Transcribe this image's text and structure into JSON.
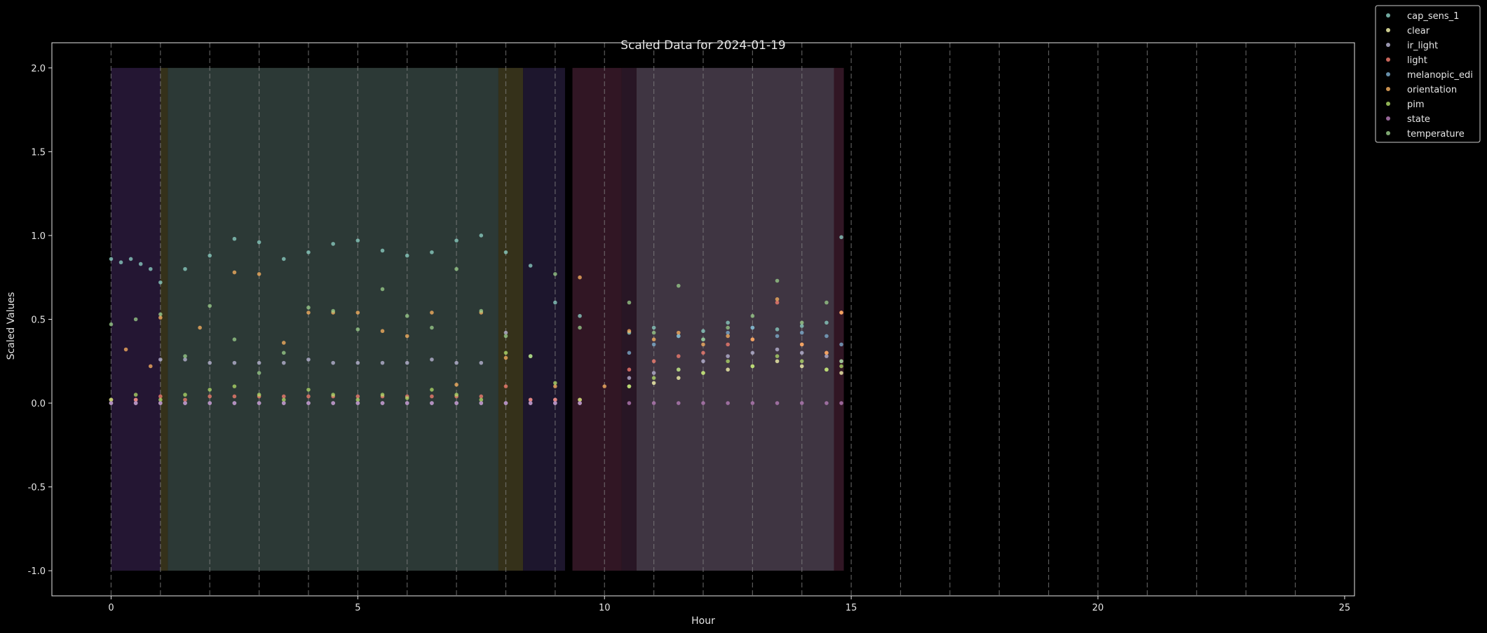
{
  "chart_data": {
    "type": "scatter",
    "title": "Scaled Data for 2024-01-19",
    "xlabel": "Hour",
    "ylabel": "Scaled Values",
    "xlim": [
      -1.2,
      25.2
    ],
    "ylim": [
      -1.15,
      2.15
    ],
    "xticks": [
      0,
      5,
      10,
      15,
      20,
      25
    ],
    "yticks": [
      -1.0,
      -0.5,
      0.0,
      0.5,
      1.0,
      1.5,
      2.0
    ],
    "grid": false,
    "hour_lines": [
      0,
      1,
      2,
      3,
      4,
      5,
      6,
      7,
      8,
      9,
      10,
      11,
      12,
      13,
      14,
      15,
      16,
      17,
      18,
      19,
      20,
      21,
      22,
      23,
      24
    ],
    "legend_position": "outside-top-right",
    "shaded_regions": [
      {
        "x0": 0.0,
        "x1": 1.0,
        "y0": -1.0,
        "y1": 2.0,
        "color": "#2a1a3c"
      },
      {
        "x0": 1.0,
        "x1": 1.15,
        "y0": -1.0,
        "y1": 2.0,
        "color": "#3e3a1e"
      },
      {
        "x0": 1.15,
        "x1": 7.85,
        "y0": -1.0,
        "y1": 2.0,
        "color": "#34433f"
      },
      {
        "x0": 7.85,
        "x1": 8.35,
        "y0": -1.0,
        "y1": 2.0,
        "color": "#3e3a1e"
      },
      {
        "x0": 8.35,
        "x1": 9.2,
        "y0": -1.0,
        "y1": 2.0,
        "color": "#221a35"
      },
      {
        "x0": 9.35,
        "x1": 10.35,
        "y0": -1.0,
        "y1": 2.0,
        "color": "#3a1a2a"
      },
      {
        "x0": 10.35,
        "x1": 10.65,
        "y0": -1.0,
        "y1": 2.0,
        "color": "#2f1a2c"
      },
      {
        "x0": 10.65,
        "x1": 14.65,
        "y0": -1.0,
        "y1": 2.0,
        "color": "#4a3e4e"
      },
      {
        "x0": 14.65,
        "x1": 14.85,
        "y0": -1.0,
        "y1": 2.0,
        "color": "#3a1a2a"
      }
    ],
    "series": [
      {
        "name": "cap_sens_1",
        "color": "#8dd3c7",
        "x": [
          0,
          0.2,
          0.4,
          0.6,
          0.8,
          1.0,
          1.5,
          2.0,
          2.5,
          3.0,
          3.5,
          4.0,
          4.5,
          5.0,
          5.5,
          6.0,
          6.5,
          7.0,
          7.5,
          8.0,
          8.5,
          9.0,
          9.5,
          10.5,
          11.0,
          11.5,
          12.0,
          12.5,
          13.0,
          13.5,
          14.0,
          14.5,
          14.8
        ],
        "y": [
          0.86,
          0.84,
          0.86,
          0.83,
          0.8,
          0.72,
          0.8,
          0.88,
          0.98,
          0.96,
          0.86,
          0.9,
          0.95,
          0.97,
          0.91,
          0.88,
          0.9,
          0.97,
          1.0,
          0.9,
          0.82,
          0.6,
          0.52,
          0.42,
          0.45,
          0.4,
          0.43,
          0.48,
          0.45,
          0.44,
          0.46,
          0.48,
          0.99
        ]
      },
      {
        "name": "clear",
        "color": "#ffffb3",
        "x": [
          0,
          0.5,
          1.0,
          1.5,
          2.0,
          2.5,
          3.0,
          3.5,
          4.0,
          4.5,
          5.0,
          5.5,
          6.0,
          6.5,
          7.0,
          7.5,
          8.0,
          8.5,
          9.0,
          9.5,
          10.5,
          11.0,
          11.5,
          12.0,
          12.5,
          13.0,
          13.5,
          14.0,
          14.5,
          14.8
        ],
        "y": [
          0.0,
          0.0,
          0.0,
          0.0,
          0.0,
          0.0,
          0.0,
          0.0,
          0.0,
          0.0,
          0.0,
          0.0,
          0.0,
          0.0,
          0.0,
          0.0,
          0.0,
          0.0,
          0.0,
          0.0,
          0.1,
          0.12,
          0.15,
          0.18,
          0.2,
          0.22,
          0.25,
          0.22,
          0.2,
          0.18
        ]
      },
      {
        "name": "ir_light",
        "color": "#bebada",
        "x": [
          0,
          0.5,
          1.0,
          1.5,
          2.0,
          2.5,
          3.0,
          3.5,
          4.0,
          4.5,
          5.0,
          5.5,
          6.0,
          6.5,
          7.0,
          7.5,
          8.0,
          8.5,
          9.0,
          9.5,
          10.5,
          11.0,
          11.5,
          12.0,
          12.5,
          13.0,
          13.5,
          14.0,
          14.5,
          14.8
        ],
        "y": [
          0.02,
          0.02,
          0.26,
          0.26,
          0.24,
          0.24,
          0.24,
          0.24,
          0.26,
          0.24,
          0.24,
          0.24,
          0.24,
          0.26,
          0.24,
          0.24,
          0.42,
          0.02,
          0.02,
          0.02,
          0.15,
          0.18,
          0.2,
          0.25,
          0.28,
          0.3,
          0.32,
          0.3,
          0.28,
          0.25
        ]
      },
      {
        "name": "light",
        "color": "#fb8072",
        "x": [
          0,
          0.5,
          1.0,
          1.5,
          2.0,
          2.5,
          3.0,
          3.5,
          4.0,
          4.5,
          5.0,
          5.5,
          6.0,
          6.5,
          7.0,
          7.5,
          8.0,
          8.5,
          9.0,
          9.5,
          10.5,
          11.0,
          11.5,
          12.0,
          12.5,
          13.0,
          13.5,
          14.0,
          14.5,
          14.8
        ],
        "y": [
          0.02,
          0.02,
          0.04,
          0.02,
          0.04,
          0.04,
          0.04,
          0.04,
          0.04,
          0.04,
          0.04,
          0.04,
          0.04,
          0.04,
          0.04,
          0.04,
          0.1,
          0.02,
          0.02,
          0.02,
          0.2,
          0.25,
          0.28,
          0.3,
          0.35,
          0.38,
          0.6,
          0.35,
          0.3,
          0.54
        ]
      },
      {
        "name": "melanopic_edi",
        "color": "#80b1d3",
        "x": [
          0,
          0.5,
          1.0,
          1.5,
          2.0,
          2.5,
          3.0,
          3.5,
          4.0,
          4.5,
          5.0,
          5.5,
          6.0,
          6.5,
          7.0,
          7.5,
          8.0,
          8.5,
          9.0,
          9.5,
          10.5,
          11.0,
          11.5,
          12.0,
          12.5,
          13.0,
          13.5,
          14.0,
          14.5,
          14.8
        ],
        "y": [
          0.0,
          0.0,
          0.0,
          0.0,
          0.0,
          0.0,
          0.0,
          0.0,
          0.0,
          0.0,
          0.0,
          0.0,
          0.0,
          0.0,
          0.0,
          0.0,
          0.0,
          0.0,
          0.0,
          0.0,
          0.3,
          0.35,
          0.4,
          0.38,
          0.42,
          0.45,
          0.4,
          0.42,
          0.4,
          0.35
        ]
      },
      {
        "name": "orientation",
        "color": "#fdb462",
        "x": [
          0.3,
          0.8,
          1.0,
          1.8,
          2.5,
          3.0,
          3.5,
          4.0,
          4.5,
          5.0,
          5.5,
          6.0,
          6.5,
          7.0,
          7.5,
          8.0,
          8.5,
          9.0,
          9.5,
          10.0,
          10.5,
          11.0,
          11.5,
          12.0,
          12.5,
          13.0,
          13.5,
          14.0,
          14.5,
          14.8
        ],
        "y": [
          0.32,
          0.22,
          0.51,
          0.45,
          0.78,
          0.77,
          0.36,
          0.54,
          0.54,
          0.54,
          0.43,
          0.4,
          0.54,
          0.11,
          0.54,
          0.27,
          0.28,
          0.1,
          0.75,
          0.1,
          0.43,
          0.38,
          0.42,
          0.35,
          0.4,
          0.38,
          0.62,
          0.35,
          0.3,
          0.54
        ]
      },
      {
        "name": "pim",
        "color": "#b3de69",
        "x": [
          0,
          0.5,
          1.0,
          1.5,
          2.0,
          2.5,
          3.0,
          3.5,
          4.0,
          4.5,
          5.0,
          5.5,
          6.0,
          6.5,
          7.0,
          7.5,
          8.0,
          8.5,
          9.0,
          9.5,
          10.5,
          11.0,
          11.5,
          12.0,
          12.5,
          13.0,
          13.5,
          14.0,
          14.5,
          14.8
        ],
        "y": [
          0.02,
          0.05,
          0.02,
          0.05,
          0.08,
          0.1,
          0.05,
          0.02,
          0.08,
          0.05,
          0.02,
          0.05,
          0.03,
          0.08,
          0.05,
          0.02,
          0.3,
          0.28,
          0.12,
          0.02,
          0.1,
          0.15,
          0.2,
          0.18,
          0.25,
          0.22,
          0.28,
          0.25,
          0.2,
          0.22
        ]
      },
      {
        "name": "state",
        "color": "#bc80bd",
        "x": [
          0,
          0.5,
          1.0,
          1.5,
          2.0,
          2.5,
          3.0,
          3.5,
          4.0,
          4.5,
          5.0,
          5.5,
          6.0,
          6.5,
          7.0,
          7.5,
          8.0,
          8.5,
          9.0,
          9.5,
          10.5,
          11.0,
          11.5,
          12.0,
          12.5,
          13.0,
          13.5,
          14.0,
          14.5,
          14.8
        ],
        "y": [
          0.0,
          0.0,
          0.0,
          0.0,
          0.0,
          0.0,
          0.0,
          0.0,
          0.0,
          0.0,
          0.0,
          0.0,
          0.0,
          0.0,
          0.0,
          0.0,
          0.0,
          0.0,
          0.0,
          0.0,
          0.0,
          0.0,
          0.0,
          0.0,
          0.0,
          0.0,
          0.0,
          0.0,
          0.0,
          0.0
        ]
      },
      {
        "name": "temperature",
        "color": "#9cd08c",
        "x": [
          0,
          0.5,
          1.0,
          1.5,
          2.0,
          2.5,
          3.0,
          3.5,
          4.0,
          4.5,
          5.0,
          5.5,
          6.0,
          6.5,
          7.0,
          7.5,
          8.0,
          8.5,
          9.0,
          9.5,
          10.5,
          11.0,
          11.5,
          12.0,
          12.5,
          13.0,
          13.5,
          14.0,
          14.5,
          14.8
        ],
        "y": [
          0.47,
          0.5,
          0.53,
          0.28,
          0.58,
          0.38,
          0.18,
          0.3,
          0.57,
          0.55,
          0.44,
          0.68,
          0.52,
          0.45,
          0.8,
          0.55,
          0.4,
          0.28,
          0.77,
          0.45,
          0.6,
          0.42,
          0.7,
          0.38,
          0.45,
          0.52,
          0.73,
          0.48,
          0.6,
          0.25
        ]
      }
    ]
  }
}
